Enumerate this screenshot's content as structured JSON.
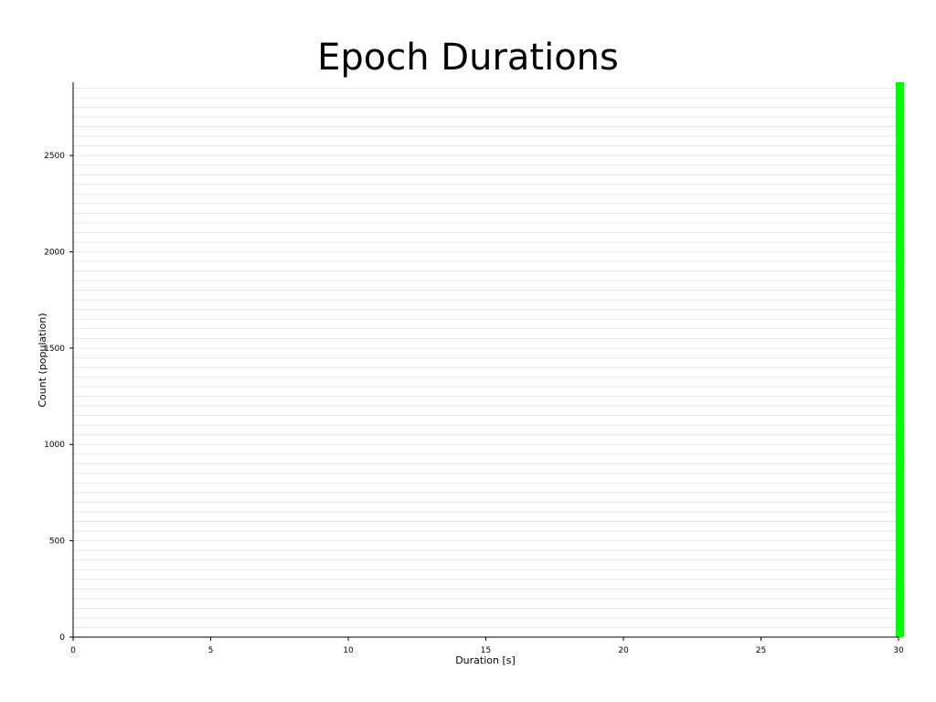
{
  "chart_data": {
    "type": "bar",
    "title": "Epoch Durations",
    "xlabel": "Duration [s]",
    "ylabel": "Count (population)",
    "xlim": [
      0,
      30
    ],
    "ylim": [
      0,
      2880
    ],
    "xticks": [
      0,
      5,
      10,
      15,
      20,
      25,
      30
    ],
    "yticks": [
      0,
      500,
      1000,
      1500,
      2000,
      2500
    ],
    "grid": true,
    "minor_grid_step": 50,
    "legend": "none",
    "bars": [
      {
        "x_start": 29.9,
        "x_end": 30.2,
        "value": 2880
      }
    ],
    "bar_color": "#00ff00",
    "grid_color": "#e0e0e0",
    "axis_color": "#000000"
  }
}
